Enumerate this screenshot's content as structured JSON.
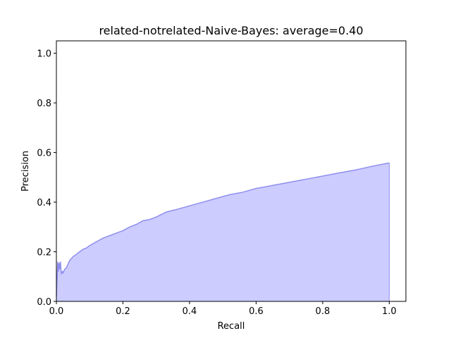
{
  "chart_data": {
    "type": "area",
    "title": "related-notrelated-Naive-Bayes: average=0.40",
    "xlabel": "Recall",
    "ylabel": "Precision",
    "xlim": [
      0.0,
      1.05
    ],
    "ylim": [
      0.0,
      1.05
    ],
    "xticks": [
      "0.0",
      "0.2",
      "0.4",
      "0.6",
      "0.8",
      "1.0"
    ],
    "yticks": [
      "0.0",
      "0.2",
      "0.4",
      "0.6",
      "0.8",
      "1.0"
    ],
    "grid": false,
    "fill_color": "#ccccff",
    "line_color": "#8f8fef",
    "series": [
      {
        "x": [
          0.0,
          0.002,
          0.004,
          0.006,
          0.008,
          0.01,
          0.012,
          0.015,
          0.018,
          0.02,
          0.025,
          0.03,
          0.035,
          0.04,
          0.05,
          0.06,
          0.07,
          0.08,
          0.09,
          0.1,
          0.12,
          0.14,
          0.16,
          0.18,
          0.2,
          0.22,
          0.24,
          0.26,
          0.28,
          0.3,
          0.33,
          0.36,
          0.4,
          0.44,
          0.48,
          0.52,
          0.56,
          0.6,
          0.64,
          0.68,
          0.72,
          0.76,
          0.8,
          0.85,
          0.9,
          0.95,
          1.0
        ],
        "y": [
          0.02,
          0.08,
          0.16,
          0.12,
          0.155,
          0.13,
          0.16,
          0.11,
          0.12,
          0.115,
          0.13,
          0.135,
          0.15,
          0.165,
          0.18,
          0.19,
          0.2,
          0.21,
          0.215,
          0.225,
          0.24,
          0.255,
          0.265,
          0.275,
          0.285,
          0.3,
          0.31,
          0.325,
          0.33,
          0.34,
          0.36,
          0.37,
          0.385,
          0.4,
          0.415,
          0.43,
          0.44,
          0.455,
          0.465,
          0.475,
          0.485,
          0.495,
          0.505,
          0.518,
          0.53,
          0.545,
          0.558
        ]
      }
    ]
  }
}
